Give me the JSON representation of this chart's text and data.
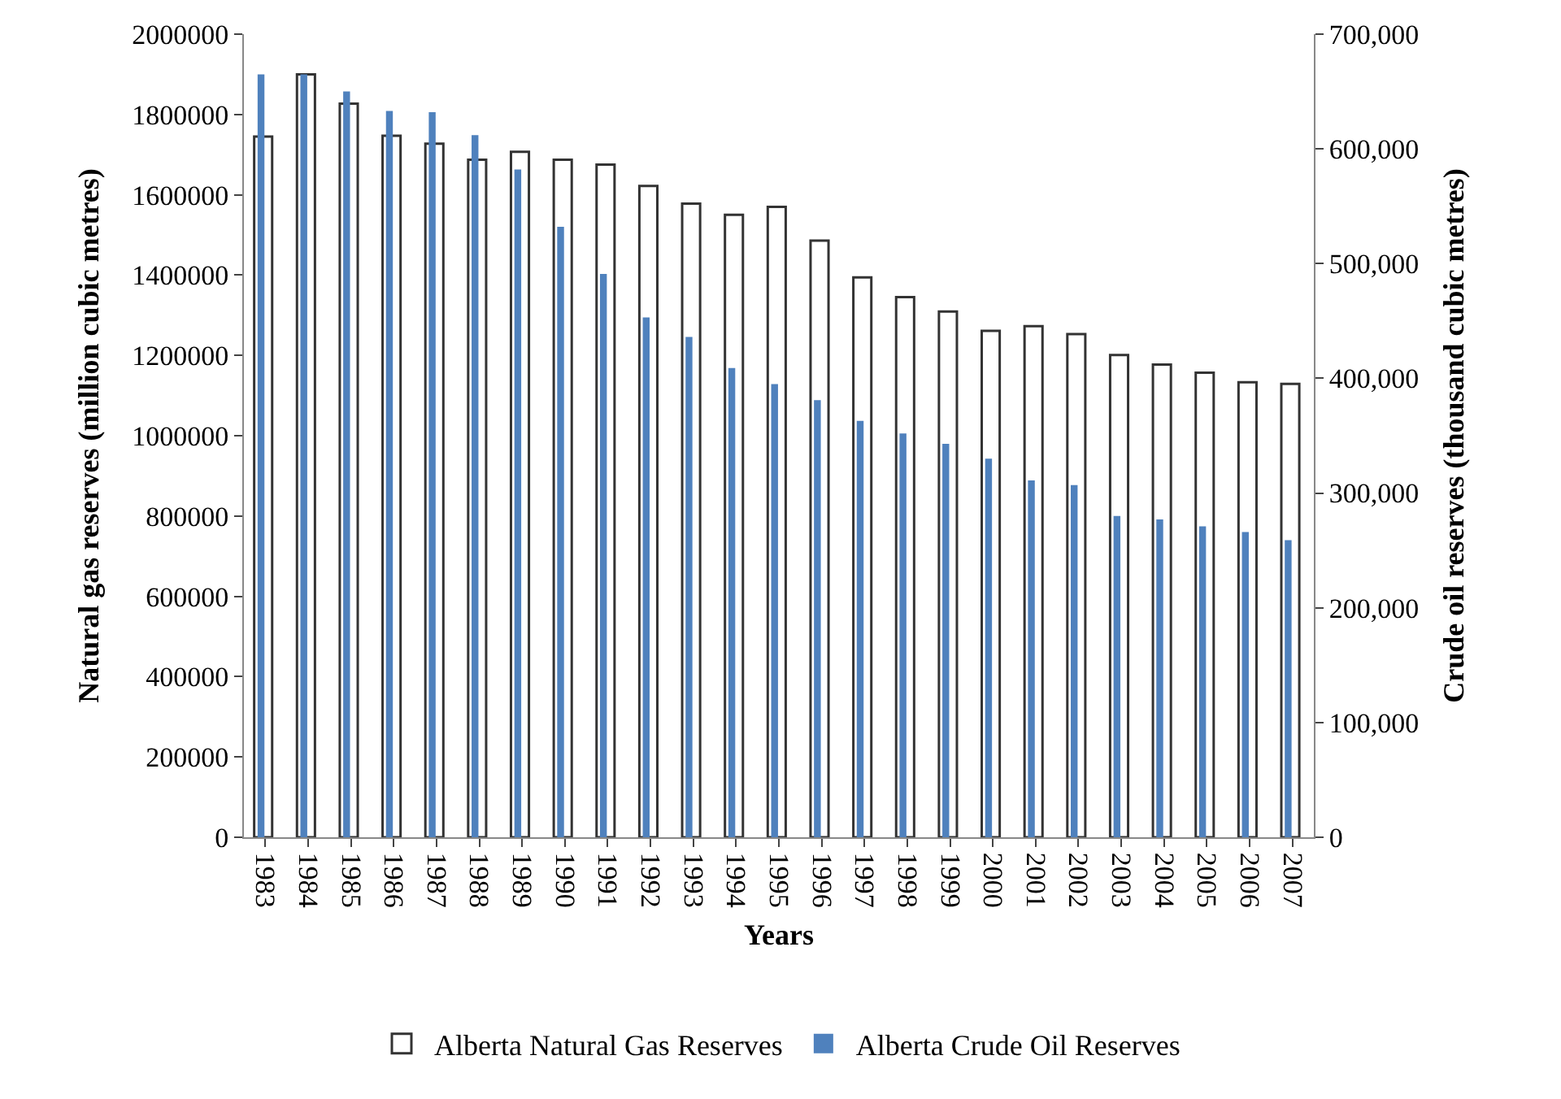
{
  "chart_data": {
    "type": "bar",
    "categories": [
      "1983",
      "1984",
      "1985",
      "1986",
      "1987",
      "1988",
      "1989",
      "1990",
      "1991",
      "1992",
      "1993",
      "1994",
      "1995",
      "1996",
      "1997",
      "1998",
      "1999",
      "2000",
      "2001",
      "2002",
      "2003",
      "2004",
      "2005",
      "2006",
      "2007"
    ],
    "series": [
      {
        "name": "Alberta Natural Gas Reserves",
        "color": "#ffffff",
        "values": [
          1745000,
          1900000,
          1827000,
          1747000,
          1727000,
          1687000,
          1707000,
          1687000,
          1675000,
          1622000,
          1578000,
          1550000,
          1570000,
          1486000,
          1394000,
          1345000,
          1309000,
          1261000,
          1273000,
          1253000,
          1201000,
          1177000,
          1157000,
          1133000,
          1129000
        ]
      },
      {
        "name": "Alberta Crude Oil Reserves",
        "color": "#4f81bd",
        "axis": "y2",
        "values": [
          665000,
          665000,
          650000,
          633000,
          632000,
          612000,
          582000,
          532000,
          491000,
          453000,
          436000,
          409000,
          395000,
          381000,
          363000,
          352000,
          343000,
          330000,
          311000,
          307000,
          280000,
          277000,
          271000,
          266000,
          259000
        ]
      }
    ],
    "xlabel": "Years",
    "ylabel": "Natural gas reserves (million cubic metres)",
    "y2label": "Crude oil reserves (thousand cubic metres)",
    "ylim": [
      0,
      2000000
    ],
    "yticks": [
      0,
      200000,
      400000,
      600000,
      800000,
      1000000,
      1200000,
      1400000,
      1600000,
      1800000,
      2000000
    ],
    "y2lim": [
      0,
      700000
    ],
    "y2ticks": [
      0,
      {
        "value": 100000,
        "label": "100,000"
      },
      {
        "value": 200000,
        "label": "200,000"
      },
      {
        "value": 300000,
        "label": "300,000"
      },
      {
        "value": 400000,
        "label": "400,000"
      },
      {
        "value": 500000,
        "label": "500,000"
      },
      {
        "value": 600000,
        "label": "600,000"
      },
      {
        "value": 700000,
        "label": "700,000"
      }
    ],
    "legend": "bottom"
  }
}
